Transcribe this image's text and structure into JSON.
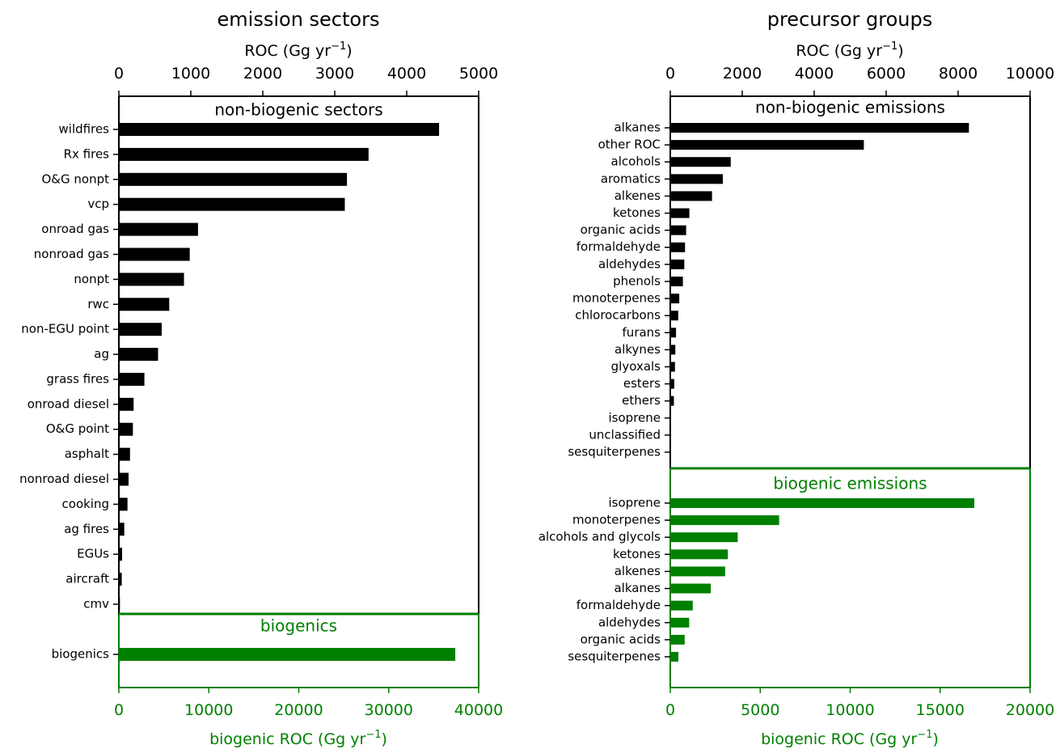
{
  "chart_data": [
    {
      "type": "bar",
      "orientation": "horizontal",
      "title": "emission sectors",
      "top_axis": {
        "label_main": "ROC (Gg yr",
        "label_sup": "−1",
        "label_end": ")",
        "xlim": [
          0,
          5000
        ],
        "ticks": [
          "0",
          "1000",
          "2000",
          "3000",
          "4000",
          "5000"
        ]
      },
      "bottom_axis": {
        "label_main": "biogenic ROC (Gg yr",
        "label_sup": "−1",
        "label_end": ")",
        "xlim": [
          0,
          40000
        ],
        "ticks": [
          "0",
          "10000",
          "20000",
          "30000",
          "40000"
        ]
      },
      "sections": [
        {
          "label": "non-biogenic sectors",
          "color": "#000000",
          "axis": "top",
          "categories": [
            "wildfires",
            "Rx fires",
            "O&G nonpt",
            "vcp",
            "onroad gas",
            "nonroad gas",
            "nonpt",
            "rwc",
            "non-EGU point",
            "ag",
            "grass fires",
            "onroad diesel",
            "O&G point",
            "asphalt",
            "nonroad diesel",
            "cooking",
            "ag fires",
            "EGUs",
            "aircraft",
            "cmv"
          ],
          "values": [
            4450,
            3470,
            3170,
            3140,
            1100,
            985,
            905,
            700,
            595,
            545,
            355,
            205,
            195,
            155,
            135,
            120,
            75,
            45,
            40,
            15
          ]
        },
        {
          "label": "biogenics",
          "color": "#008000",
          "axis": "bottom",
          "categories": [
            "biogenics"
          ],
          "values": [
            37400
          ]
        }
      ]
    },
    {
      "type": "bar",
      "orientation": "horizontal",
      "title": "precursor groups",
      "top_axis": {
        "label_main": "ROC (Gg yr",
        "label_sup": "−1",
        "label_end": ")",
        "xlim": [
          0,
          10000
        ],
        "ticks": [
          "0",
          "2000",
          "4000",
          "6000",
          "8000",
          "10000"
        ]
      },
      "bottom_axis": {
        "label_main": "biogenic ROC (Gg yr",
        "label_sup": "−1",
        "label_end": ")",
        "xlim": [
          0,
          20000
        ],
        "ticks": [
          "0",
          "5000",
          "10000",
          "15000",
          "20000"
        ]
      },
      "sections": [
        {
          "label": "non-biogenic emissions",
          "color": "#000000",
          "axis": "top",
          "categories": [
            "alkanes",
            "other ROC",
            "alcohols",
            "aromatics",
            "alkenes",
            "ketones",
            "organic acids",
            "formaldehyde",
            "aldehydes",
            "phenols",
            "monoterpenes",
            "chlorocarbons",
            "furans",
            "alkynes",
            "glyoxals",
            "esters",
            "ethers",
            "isoprene",
            "unclassified",
            "sesquiterpenes"
          ],
          "values": [
            8300,
            5380,
            1680,
            1460,
            1160,
            530,
            440,
            410,
            390,
            350,
            250,
            220,
            160,
            140,
            130,
            110,
            100,
            20,
            15,
            10
          ]
        },
        {
          "label": "biogenic emissions",
          "color": "#008000",
          "axis": "bottom",
          "categories": [
            "isoprene",
            "monoterpenes",
            "alcohols and glycols",
            "ketones",
            "alkenes",
            "alkanes",
            "formaldehyde",
            "aldehydes",
            "organic acids",
            "sesquiterpenes"
          ],
          "values": [
            16900,
            6050,
            3750,
            3200,
            3050,
            2250,
            1250,
            1050,
            800,
            450
          ]
        }
      ]
    }
  ]
}
